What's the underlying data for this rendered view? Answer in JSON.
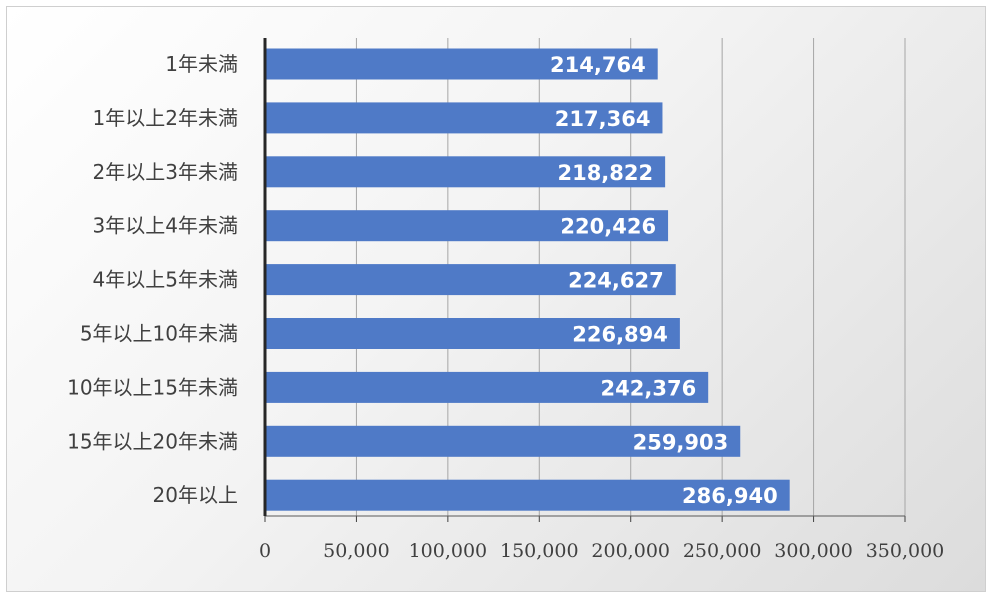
{
  "chart_data": {
    "type": "bar",
    "orientation": "horizontal",
    "categories": [
      "1年未満",
      "1年以上2年未満",
      "2年以上3年未満",
      "3年以上4年未満",
      "4年以上5年未満",
      "5年以上10年未満",
      "10年以上15年未満",
      "15年以上20年未満",
      "20年以上"
    ],
    "values": [
      214764,
      217364,
      218822,
      220426,
      224627,
      226894,
      242376,
      259903,
      286940
    ],
    "value_labels": [
      "214,764",
      "217,364",
      "218,822",
      "220,426",
      "224,627",
      "226,894",
      "242,376",
      "259,903",
      "286,940"
    ],
    "xlim": [
      0,
      350000
    ],
    "x_ticks": [
      0,
      50000,
      100000,
      150000,
      200000,
      250000,
      300000,
      350000
    ],
    "x_tick_labels": [
      "0",
      "50,000",
      "100,000",
      "150,000",
      "200,000",
      "250,000",
      "300,000",
      "350,000"
    ],
    "grid": "vertical",
    "legend": "none",
    "bar_color": "#4f7ac7",
    "title": "",
    "xlabel": "",
    "ylabel": ""
  }
}
